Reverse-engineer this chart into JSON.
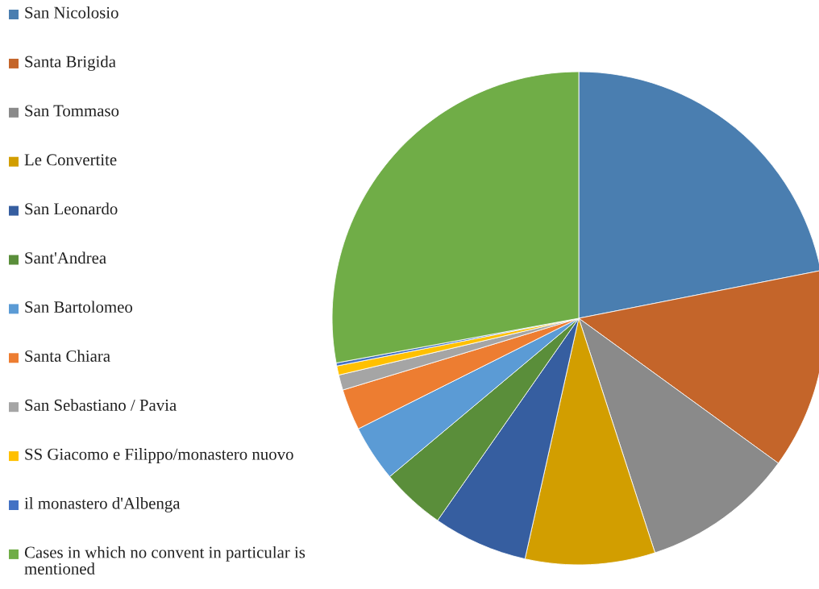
{
  "chart_data": {
    "type": "pie",
    "categories": [
      "San Nicolosio",
      "Santa Brigida",
      "San Tommaso",
      "Le Convertite",
      "San Leonardo",
      "Sant'Andrea",
      "San Bartolomeo",
      "Santa Chiara",
      "San Sebastiano / Pavia",
      "SS Giacomo e Filippo/monastero nuovo",
      "il monastero d'Albenga",
      "Cases in which no convent in particular is mentioned"
    ],
    "values": [
      21.9,
      13.1,
      10.0,
      8.5,
      6.2,
      4.2,
      3.7,
      2.7,
      1.0,
      0.6,
      0.2,
      27.9
    ],
    "colors": [
      "#4a7eb0",
      "#c4652a",
      "#8a8a8a",
      "#d29e00",
      "#365ea0",
      "#5a8e3a",
      "#5b9bd5",
      "#ed7d31",
      "#a5a5a5",
      "#ffc000",
      "#4472c4",
      "#70ad47"
    ],
    "legend": "left"
  }
}
